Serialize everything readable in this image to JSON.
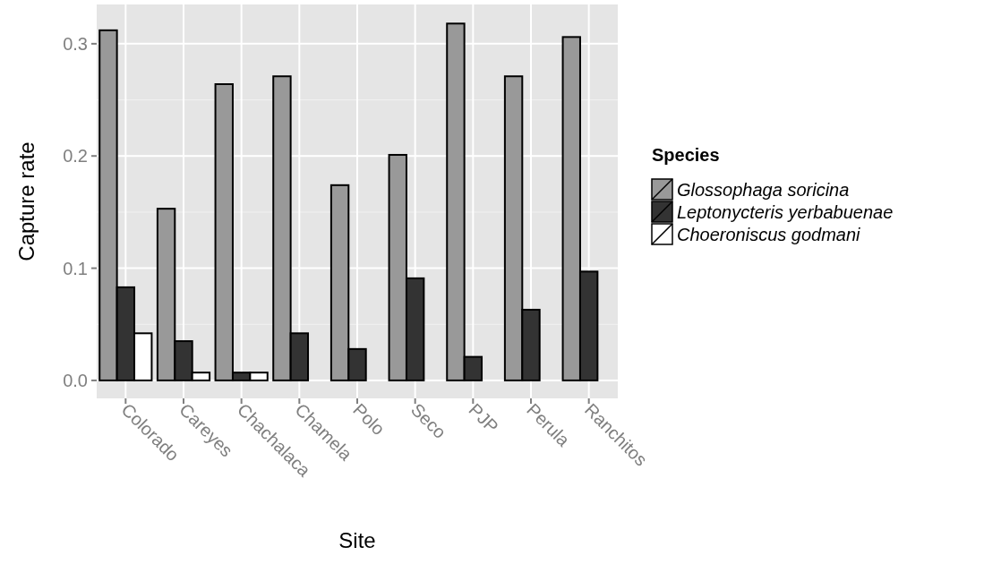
{
  "chart_data": {
    "type": "bar",
    "xlabel": "Site",
    "ylabel": "Capture rate",
    "legend_title": "Species",
    "categories": [
      "Colorado",
      "Careyes",
      "Chachalaca",
      "Chamela",
      "Polo",
      "Seco",
      "PJP",
      "Perula",
      "Ranchitos"
    ],
    "series": [
      {
        "name": "Glossophaga soricina",
        "color": "#999999",
        "values": [
          0.312,
          0.153,
          0.264,
          0.271,
          0.174,
          0.201,
          0.318,
          0.271,
          0.306
        ]
      },
      {
        "name": "Leptonycteris yerbabuenae",
        "color": "#333333",
        "values": [
          0.083,
          0.035,
          0.007,
          0.042,
          0.028,
          0.091,
          0.021,
          0.063,
          0.097
        ]
      },
      {
        "name": "Choeroniscus godmani",
        "color": "#ffffff",
        "values": [
          0.042,
          0.007,
          0.007,
          0,
          0,
          0,
          0,
          0,
          0
        ]
      }
    ],
    "ylim": [
      -0.016,
      0.335
    ],
    "yticks": [
      {
        "value": 0,
        "label": "0.0"
      },
      0.1,
      0.2,
      0.3
    ],
    "grid": true,
    "legend": "right"
  }
}
